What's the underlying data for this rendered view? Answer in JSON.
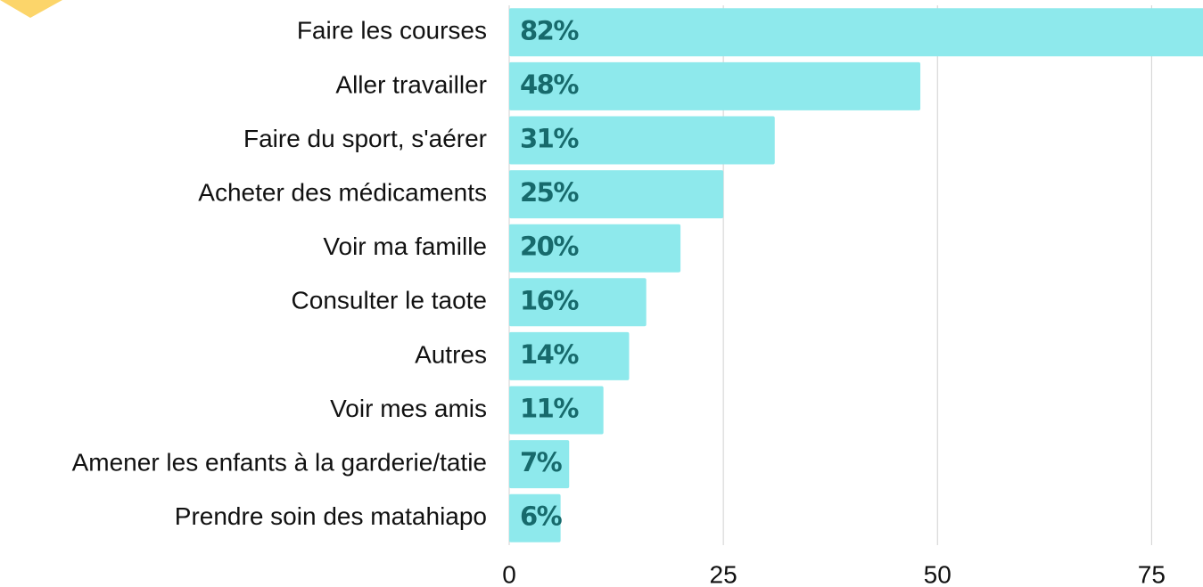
{
  "chart_data": {
    "type": "bar",
    "orientation": "horizontal",
    "categories": [
      "Faire les courses",
      "Aller travailler",
      "Faire du sport, s'aérer",
      "Acheter des médicaments",
      "Voir ma famille",
      "Consulter le taote",
      "Autres",
      "Voir mes amis",
      "Amener les enfants à la garderie/tatie",
      "Prendre soin des matahiapo"
    ],
    "values": [
      82,
      48,
      31,
      25,
      20,
      16,
      14,
      11,
      7,
      6
    ],
    "value_labels": [
      "82%",
      "48%",
      "31%",
      "25%",
      "20%",
      "16%",
      "14%",
      "11%",
      "7%",
      "6%"
    ],
    "color": "#8ee9ec",
    "xlim": [
      0,
      81
    ],
    "xticks": [
      0,
      25,
      50,
      75
    ],
    "grid": true
  }
}
